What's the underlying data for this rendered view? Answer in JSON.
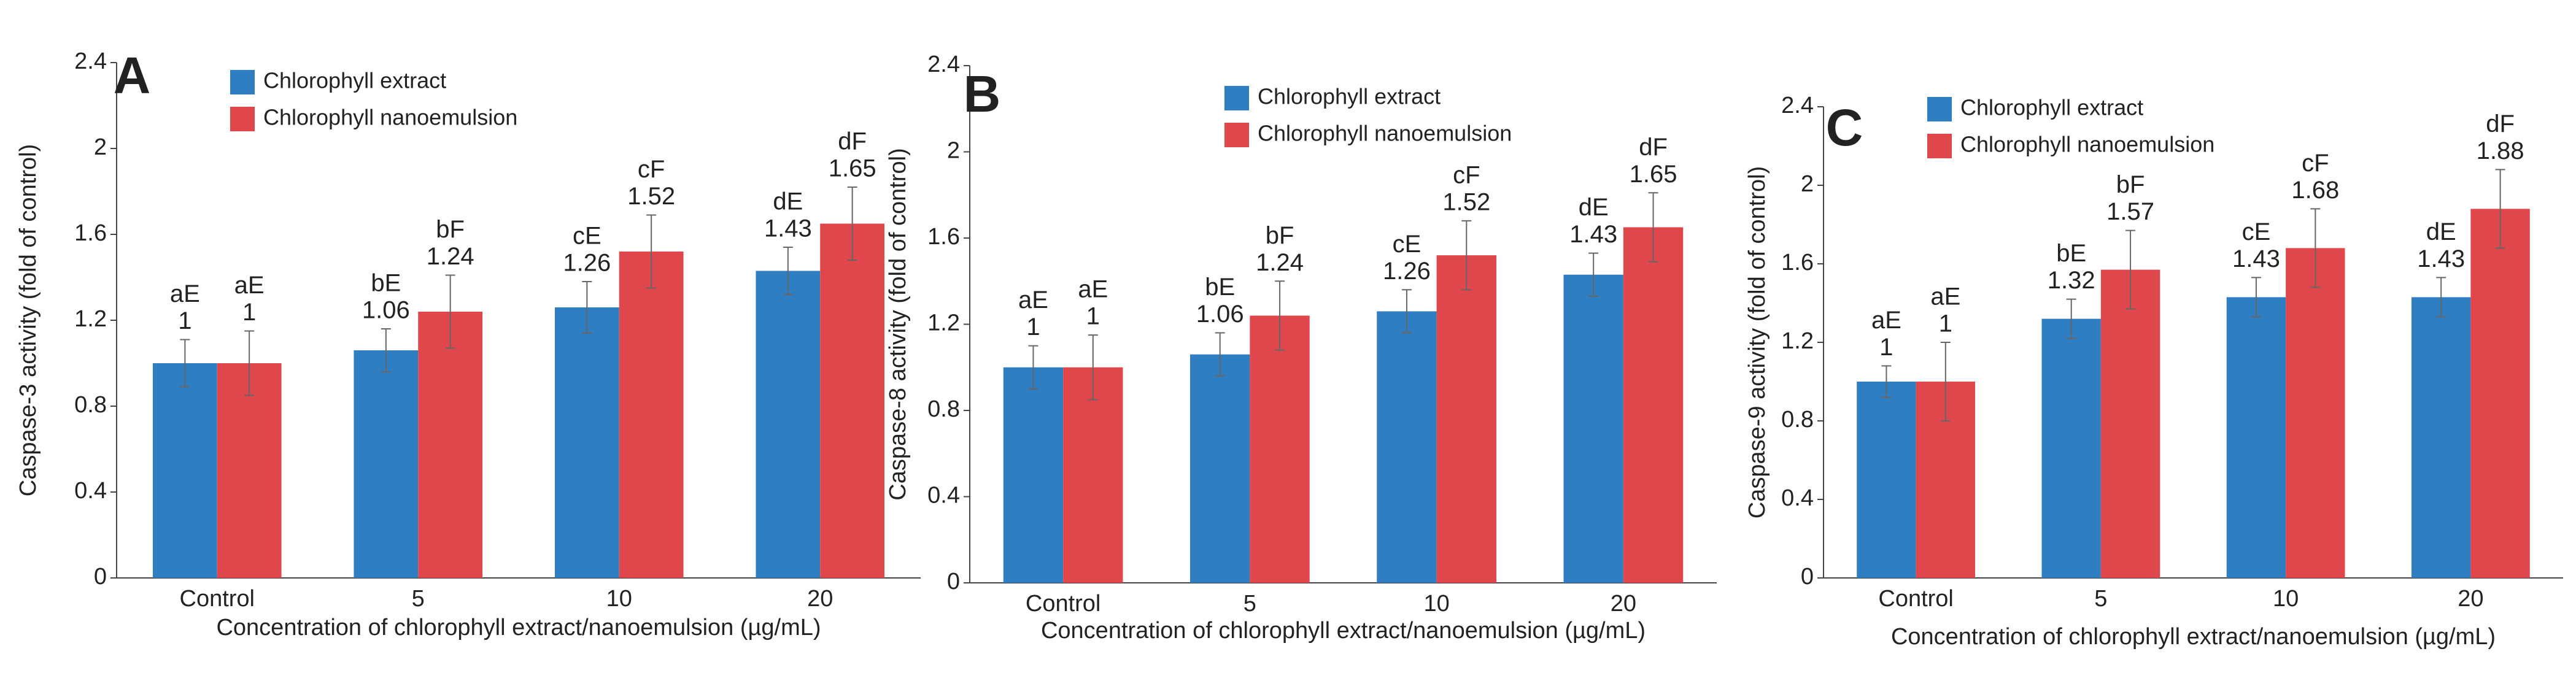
{
  "chart_data": [
    {
      "type": "bar",
      "panel_label": "A",
      "ylabel": "Caspase-3 activity (fold of control)",
      "xlabel": "Concentration of chlorophyll extract/nanoemulsion (µg/mL)",
      "categories": [
        "Control",
        "5",
        "10",
        "20"
      ],
      "series": [
        {
          "name": "Chlorophyll extract",
          "color": "#2f7ec1",
          "values": [
            1,
            1.06,
            1.26,
            1.43
          ],
          "errors": [
            0.11,
            0.1,
            0.12,
            0.11
          ],
          "letters": [
            "aE",
            "bE",
            "cE",
            "dE"
          ]
        },
        {
          "name": "Chlorophyll nanoemulsion",
          "color": "#e0474c",
          "values": [
            1,
            1.24,
            1.52,
            1.65
          ],
          "errors": [
            0.15,
            0.17,
            0.17,
            0.17
          ],
          "letters": [
            "aE",
            "bF",
            "cF",
            "dF"
          ]
        }
      ],
      "ylim": [
        0,
        2.4
      ],
      "yticks": [
        0,
        0.4,
        0.8,
        1.2,
        1.6,
        2,
        2.4
      ]
    },
    {
      "type": "bar",
      "panel_label": "B",
      "ylabel": "Caspase-8 activity (fold of control)",
      "xlabel": "Concentration of chlorophyll extract/nanoemulsion (µg/mL)",
      "categories": [
        "Control",
        "5",
        "10",
        "20"
      ],
      "series": [
        {
          "name": "Chlorophyll extract",
          "color": "#2f7ec1",
          "values": [
            1,
            1.06,
            1.26,
            1.43
          ],
          "errors": [
            0.1,
            0.1,
            0.1,
            0.1
          ],
          "letters": [
            "aE",
            "bE",
            "cE",
            "dE"
          ]
        },
        {
          "name": "Chlorophyll nanoemulsion",
          "color": "#e0474c",
          "values": [
            1,
            1.24,
            1.52,
            1.65
          ],
          "errors": [
            0.15,
            0.16,
            0.16,
            0.16
          ],
          "letters": [
            "aE",
            "bF",
            "cF",
            "dF"
          ]
        }
      ],
      "ylim": [
        0,
        2.4
      ],
      "yticks": [
        0,
        0.4,
        0.8,
        1.2,
        1.6,
        2,
        2.4
      ]
    },
    {
      "type": "bar",
      "panel_label": "C",
      "ylabel": "Caspase-9 activity (fold of control)",
      "xlabel": "Concentration of chlorophyll extract/nanoemulsion (µg/mL)",
      "categories": [
        "Control",
        "5",
        "10",
        "20"
      ],
      "series": [
        {
          "name": "Chlorophyll extract",
          "color": "#2f7ec1",
          "values": [
            1,
            1.32,
            1.43,
            1.43
          ],
          "errors": [
            0.08,
            0.1,
            0.1,
            0.1
          ],
          "letters": [
            "aE",
            "bE",
            "cE",
            "dE"
          ]
        },
        {
          "name": "Chlorophyll nanoemulsion",
          "color": "#e0474c",
          "values": [
            1,
            1.57,
            1.68,
            1.88
          ],
          "errors": [
            0.2,
            0.2,
            0.2,
            0.2
          ],
          "letters": [
            "aE",
            "bF",
            "cF",
            "dF"
          ]
        }
      ],
      "ylim": [
        0,
        2.4
      ],
      "yticks": [
        0,
        0.4,
        0.8,
        1.2,
        1.6,
        2,
        2.4
      ]
    }
  ]
}
